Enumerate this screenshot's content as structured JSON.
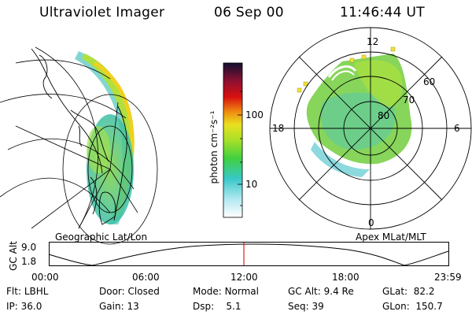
{
  "header": {
    "instrument": "Ultraviolet Imager",
    "date": "06 Sep 00",
    "time": "11:46:44 UT"
  },
  "colorbar": {
    "unit_label": "photon cm⁻²s⁻¹",
    "ticks": [
      "100",
      "10"
    ]
  },
  "polar_plot": {
    "mlt_labels": [
      "12",
      "18",
      "6",
      "0"
    ],
    "lat_labels": [
      "60",
      "70",
      "80"
    ]
  },
  "panel_labels": {
    "left": "Geographic Lat/Lon",
    "right": "Apex MLat/MLT"
  },
  "orbit": {
    "ylabel": "GC Alt",
    "yticks": [
      "9.0",
      "1.8"
    ],
    "time_ticks": [
      "00:00",
      "06:00",
      "12:00",
      "18:00",
      "23:59"
    ],
    "marker_color": "#e02020"
  },
  "status": {
    "row1": [
      {
        "key": "Flt:",
        "value": "LBHL"
      },
      {
        "key": "Door:",
        "value": "Closed"
      },
      {
        "key": "Mode:",
        "value": "Normal"
      },
      {
        "key": "GC Alt:",
        "value": "9.4 Re"
      },
      {
        "key": "GLat:",
        "value": "82.2"
      }
    ],
    "row2": [
      {
        "key": "IP:",
        "value": "36.0"
      },
      {
        "key": "Gain:",
        "value": "13"
      },
      {
        "key": "Dsp:",
        "value": "5.1"
      },
      {
        "key": "Seq:",
        "value": "39"
      },
      {
        "key": "GLon:",
        "value": "150.7"
      }
    ]
  }
}
